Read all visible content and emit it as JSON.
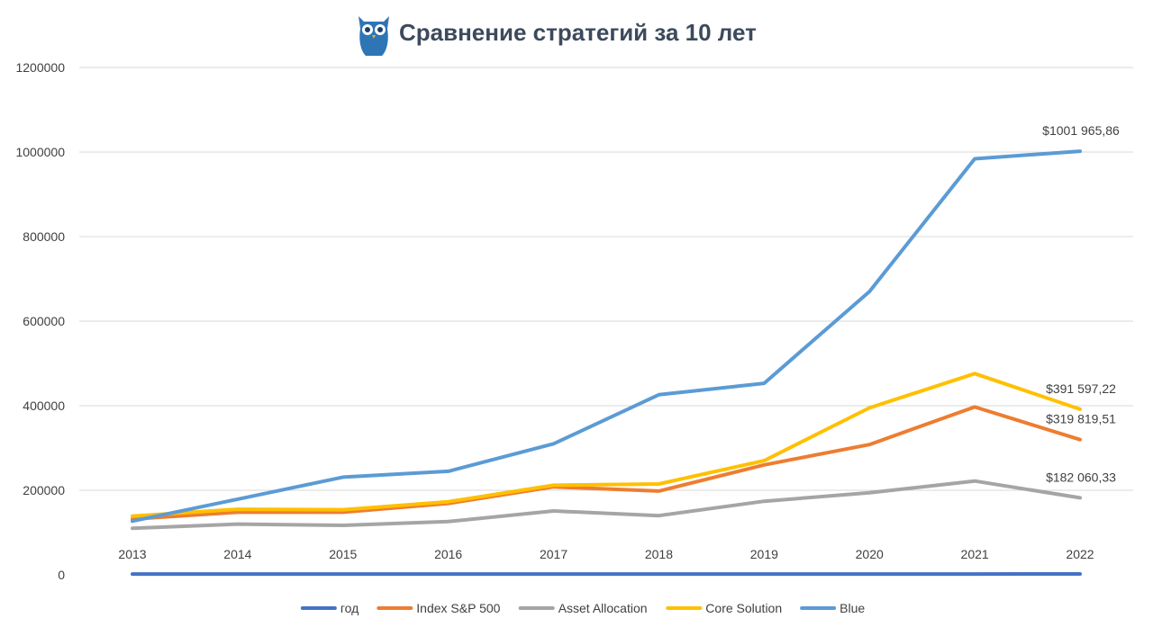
{
  "chart_data": {
    "type": "line",
    "title": "Сравнение стратегий за 10 лет",
    "xlabel": "",
    "ylabel": "",
    "ylim": [
      0,
      1200000
    ],
    "y_ticks": [
      "0",
      "200000",
      "400000",
      "600000",
      "800000",
      "1000000",
      "1200000"
    ],
    "grid": true,
    "legend_position": "bottom",
    "categories": [
      "2013",
      "2014",
      "2015",
      "2016",
      "2017",
      "2018",
      "2019",
      "2020",
      "2021",
      "2022"
    ],
    "series": [
      {
        "name": "год",
        "color": "#4472c4",
        "values": [
          2013,
          2014,
          2015,
          2016,
          2017,
          2018,
          2019,
          2020,
          2021,
          2022
        ]
      },
      {
        "name": "Index S&P 500",
        "color": "#ed7d31",
        "values": [
          132000,
          148000,
          148000,
          169000,
          208000,
          198000,
          260000,
          308000,
          397000,
          319819.51
        ]
      },
      {
        "name": "Asset Allocation",
        "color": "#a5a5a5",
        "values": [
          110000,
          120000,
          117000,
          126000,
          151000,
          140000,
          174000,
          194000,
          222000,
          182060.33
        ]
      },
      {
        "name": "Core Solution",
        "color": "#ffc000",
        "values": [
          139000,
          155000,
          154000,
          173000,
          212000,
          215000,
          270000,
          395000,
          476000,
          391597.22
        ]
      },
      {
        "name": "Blue",
        "color": "#5b9bd5",
        "values": [
          127000,
          179000,
          231000,
          245000,
          310000,
          426000,
          453000,
          670000,
          984000,
          1001965.86
        ]
      }
    ],
    "annotations": [
      {
        "series": "Blue",
        "text": "$1001 965,86"
      },
      {
        "series": "Core Solution",
        "text": "$391 597,22"
      },
      {
        "series": "Index S&P 500",
        "text": "$319 819,51"
      },
      {
        "series": "Asset Allocation",
        "text": "$182 060,33"
      }
    ]
  },
  "logo": {
    "icon": "owl-icon",
    "color": "#2e75b6"
  }
}
